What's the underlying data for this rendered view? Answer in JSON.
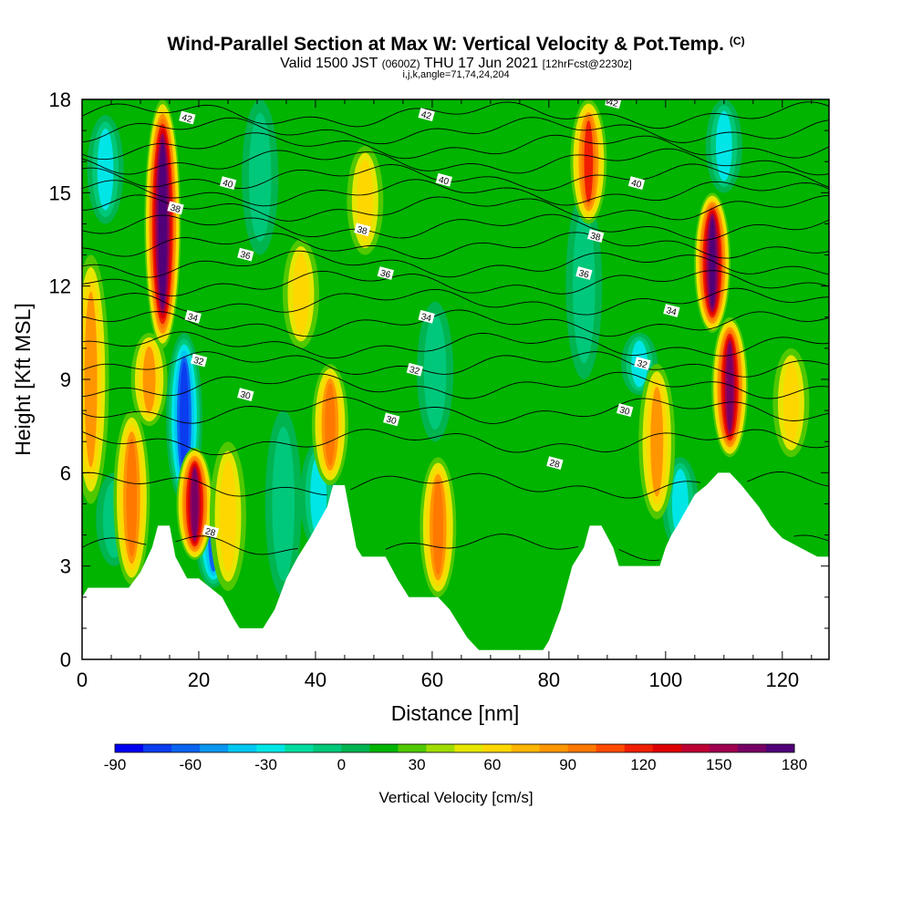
{
  "header": {
    "title": "Wind-Parallel Section at Max W: Vertical Velocity & Pot.Temp.",
    "title_mark": "(C)",
    "valid_prefix": "Valid 1500 JST",
    "valid_utc": "(0600Z)",
    "valid_date": "THU 17 Jun 2021",
    "forecast": "[12hrFcst@2230z]",
    "params": "i,j,k,angle=71,74,24,204"
  },
  "chart_data": {
    "type": "heatmap",
    "xlabel": "Distance [nm]",
    "ylabel": "Height [Kft MSL]",
    "xlim": [
      0,
      128
    ],
    "ylim": [
      0,
      18
    ],
    "x_ticks": [
      0,
      20,
      40,
      60,
      80,
      100,
      120
    ],
    "y_ticks": [
      0,
      3,
      6,
      9,
      12,
      15,
      18
    ],
    "colorbar": {
      "label": "Vertical Velocity [cm/s]",
      "min": -90,
      "max": 180,
      "step": 10,
      "tick_labels": [
        -90,
        -60,
        -30,
        0,
        30,
        60,
        90,
        120,
        150,
        180
      ],
      "colors": [
        "#0000f0",
        "#0a3cf0",
        "#0a64f0",
        "#0a96f0",
        "#00c8f0",
        "#00e6e6",
        "#00dca0",
        "#00c87a",
        "#00b450",
        "#00b400",
        "#50c800",
        "#a0dc00",
        "#e6e600",
        "#ffd700",
        "#ffb400",
        "#ff9600",
        "#ff7800",
        "#ff4b00",
        "#f01e00",
        "#dc0000",
        "#be0032",
        "#a00050",
        "#780064",
        "#500078"
      ]
    },
    "background_value": 5,
    "terrain_kft": [
      [
        0,
        2.0
      ],
      [
        1,
        2.3
      ],
      [
        8,
        2.3
      ],
      [
        10,
        2.8
      ],
      [
        12,
        3.6
      ],
      [
        13,
        4.3
      ],
      [
        15,
        4.3
      ],
      [
        16,
        3.3
      ],
      [
        18,
        2.6
      ],
      [
        20,
        2.6
      ],
      [
        22,
        2.3
      ],
      [
        24,
        2.0
      ],
      [
        26,
        1.3
      ],
      [
        27,
        1.0
      ],
      [
        31,
        1.0
      ],
      [
        33,
        1.6
      ],
      [
        35,
        2.6
      ],
      [
        37,
        3.3
      ],
      [
        39,
        3.9
      ],
      [
        42,
        4.9
      ],
      [
        43,
        5.6
      ],
      [
        45,
        5.6
      ],
      [
        46,
        4.6
      ],
      [
        47,
        3.6
      ],
      [
        48,
        3.3
      ],
      [
        52,
        3.3
      ],
      [
        54,
        2.6
      ],
      [
        56,
        2.0
      ],
      [
        61,
        2.0
      ],
      [
        63,
        1.6
      ],
      [
        66,
        0.7
      ],
      [
        68,
        0.3
      ],
      [
        79,
        0.3
      ],
      [
        80,
        0.6
      ],
      [
        82,
        1.6
      ],
      [
        83,
        2.3
      ],
      [
        84,
        3.0
      ],
      [
        86,
        3.6
      ],
      [
        87,
        4.3
      ],
      [
        89,
        4.3
      ],
      [
        91,
        3.6
      ],
      [
        92,
        3.0
      ],
      [
        99,
        3.0
      ],
      [
        100,
        3.6
      ],
      [
        101,
        4.0
      ],
      [
        102,
        4.3
      ],
      [
        105,
        5.3
      ],
      [
        107,
        5.6
      ],
      [
        109,
        6.0
      ],
      [
        111,
        6.0
      ],
      [
        113,
        5.6
      ],
      [
        116,
        4.9
      ],
      [
        118,
        4.3
      ],
      [
        120,
        3.9
      ],
      [
        123,
        3.6
      ],
      [
        126,
        3.3
      ],
      [
        128,
        3.3
      ]
    ],
    "updraft_plumes": [
      {
        "x": 1.5,
        "bottom": 5,
        "top": 13,
        "peak": 70
      },
      {
        "x": 8.5,
        "bottom": 2.4,
        "top": 8.0,
        "peak": 75
      },
      {
        "x": 11.5,
        "bottom": 7.5,
        "top": 10.5,
        "peak": 60
      },
      {
        "x": 13.8,
        "bottom": 10.0,
        "top": 18.0,
        "peak": 170
      },
      {
        "x": 19.3,
        "bottom": 3.2,
        "top": 6.8,
        "peak": 140
      },
      {
        "x": 25.0,
        "bottom": 2.2,
        "top": 7.0,
        "peak": 55
      },
      {
        "x": 37.5,
        "bottom": 10.0,
        "top": 13.5,
        "peak": 55
      },
      {
        "x": 42.5,
        "bottom": 5.6,
        "top": 9.5,
        "peak": 85
      },
      {
        "x": 48.5,
        "bottom": 13.0,
        "top": 16.5,
        "peak": 45
      },
      {
        "x": 61.0,
        "bottom": 2.0,
        "top": 6.5,
        "peak": 80
      },
      {
        "x": 86.8,
        "bottom": 14.0,
        "top": 18.0,
        "peak": 90
      },
      {
        "x": 98.5,
        "bottom": 4.5,
        "top": 9.5,
        "peak": 60
      },
      {
        "x": 108.0,
        "bottom": 10.5,
        "top": 15.0,
        "peak": 150
      },
      {
        "x": 111.0,
        "bottom": 6.5,
        "top": 11.0,
        "peak": 135
      },
      {
        "x": 121.5,
        "bottom": 6.5,
        "top": 10.0,
        "peak": 55
      }
    ],
    "downdraft_plumes": [
      {
        "x": 4.0,
        "bottom": 14.0,
        "top": 17.5,
        "peak": -40
      },
      {
        "x": 5.5,
        "bottom": 3.0,
        "top": 6.0,
        "peak": -30
      },
      {
        "x": 17.5,
        "bottom": 5.0,
        "top": 10.5,
        "peak": -90
      },
      {
        "x": 22.5,
        "bottom": 2.3,
        "top": 5.5,
        "peak": -75
      },
      {
        "x": 30.5,
        "bottom": 13.0,
        "top": 18.0,
        "peak": -30
      },
      {
        "x": 34.5,
        "bottom": 2.0,
        "top": 8.0,
        "peak": -30
      },
      {
        "x": 40.5,
        "bottom": 3.5,
        "top": 7.0,
        "peak": -35
      },
      {
        "x": 60.5,
        "bottom": 7.0,
        "top": 11.5,
        "peak": -25
      },
      {
        "x": 86.0,
        "bottom": 9.0,
        "top": 15.0,
        "peak": -30
      },
      {
        "x": 95.5,
        "bottom": 8.5,
        "top": 10.5,
        "peak": -40
      },
      {
        "x": 102.5,
        "bottom": 3.5,
        "top": 6.5,
        "peak": -35
      },
      {
        "x": 110.0,
        "bottom": 15.0,
        "top": 18.0,
        "peak": -35
      }
    ],
    "isentrope_levels_kft": [
      3.6,
      5.6,
      7.0,
      8.0,
      8.8,
      9.5,
      10.1,
      10.8,
      11.5,
      12.1,
      12.7,
      13.3,
      13.9,
      14.5,
      15.0,
      15.5,
      16.0,
      16.5,
      17.0,
      17.5
    ],
    "isentrope_labels": [
      {
        "text": "28",
        "x": 22,
        "y": 4.1
      },
      {
        "text": "28",
        "x": 81,
        "y": 6.3
      },
      {
        "text": "30",
        "x": 28,
        "y": 8.5
      },
      {
        "text": "30",
        "x": 53,
        "y": 7.7
      },
      {
        "text": "30",
        "x": 93,
        "y": 8.0
      },
      {
        "text": "32",
        "x": 20,
        "y": 9.6
      },
      {
        "text": "32",
        "x": 57,
        "y": 9.3
      },
      {
        "text": "32",
        "x": 96,
        "y": 9.5
      },
      {
        "text": "34",
        "x": 19,
        "y": 11.0
      },
      {
        "text": "34",
        "x": 59,
        "y": 11.0
      },
      {
        "text": "34",
        "x": 101,
        "y": 11.2
      },
      {
        "text": "36",
        "x": 28,
        "y": 13.0
      },
      {
        "text": "36",
        "x": 52,
        "y": 12.4
      },
      {
        "text": "36",
        "x": 86,
        "y": 12.4
      },
      {
        "text": "38",
        "x": 16,
        "y": 14.5
      },
      {
        "text": "38",
        "x": 48,
        "y": 13.8
      },
      {
        "text": "38",
        "x": 88,
        "y": 13.6
      },
      {
        "text": "40",
        "x": 25,
        "y": 15.3
      },
      {
        "text": "40",
        "x": 62,
        "y": 15.4
      },
      {
        "text": "40",
        "x": 95,
        "y": 15.3
      },
      {
        "text": "42",
        "x": 18,
        "y": 17.4
      },
      {
        "text": "42",
        "x": 59,
        "y": 17.5
      },
      {
        "text": "42",
        "x": 91,
        "y": 17.9
      }
    ]
  }
}
